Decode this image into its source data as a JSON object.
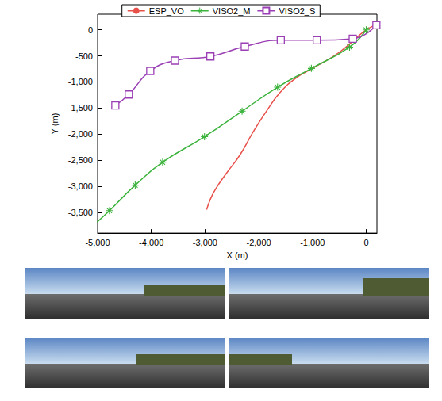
{
  "chart_data": {
    "type": "line",
    "xlabel": "X (m)",
    "ylabel": "Y (m)",
    "xlim": [
      -5000,
      200
    ],
    "xticks": [
      -5000,
      -4000,
      -3000,
      -2000,
      -1000,
      0
    ],
    "ylim": [
      -3900,
      300
    ],
    "yticks": [
      -3500,
      -3000,
      -2500,
      -2000,
      -1500,
      -1000,
      -500,
      0
    ],
    "grid": false,
    "legend": "top",
    "series": [
      {
        "name": "ESP_VO",
        "color": "#e8504a",
        "marker": "none",
        "x": [
          180,
          0,
          -500,
          -1000,
          -1300,
          -1600,
          -1850,
          -2100,
          -2350,
          -2600,
          -2800,
          -2900,
          -2970
        ],
        "values": [
          90,
          0,
          -430,
          -740,
          -920,
          -1200,
          -1550,
          -1950,
          -2400,
          -2750,
          -3050,
          -3250,
          -3450
        ]
      },
      {
        "name": "VISO2_M",
        "color": "#3cb33c",
        "marker": "asterisk",
        "x": [
          0,
          -310,
          -1020,
          -1650,
          -2310,
          -3010,
          -3790,
          -4300,
          -4780,
          -5010
        ],
        "values": [
          0,
          -330,
          -740,
          -1100,
          -1560,
          -2050,
          -2540,
          -2980,
          -3470,
          -3690
        ]
      },
      {
        "name": "VISO2_S",
        "color": "#9b3fb5",
        "marker": "square",
        "x": [
          190,
          -250,
          -920,
          -1590,
          -2260,
          -2900,
          -3560,
          -4020,
          -4420,
          -4670
        ],
        "values": [
          90,
          -170,
          -200,
          -200,
          -320,
          -510,
          -590,
          -790,
          -1240,
          -1450
        ]
      }
    ]
  }
}
